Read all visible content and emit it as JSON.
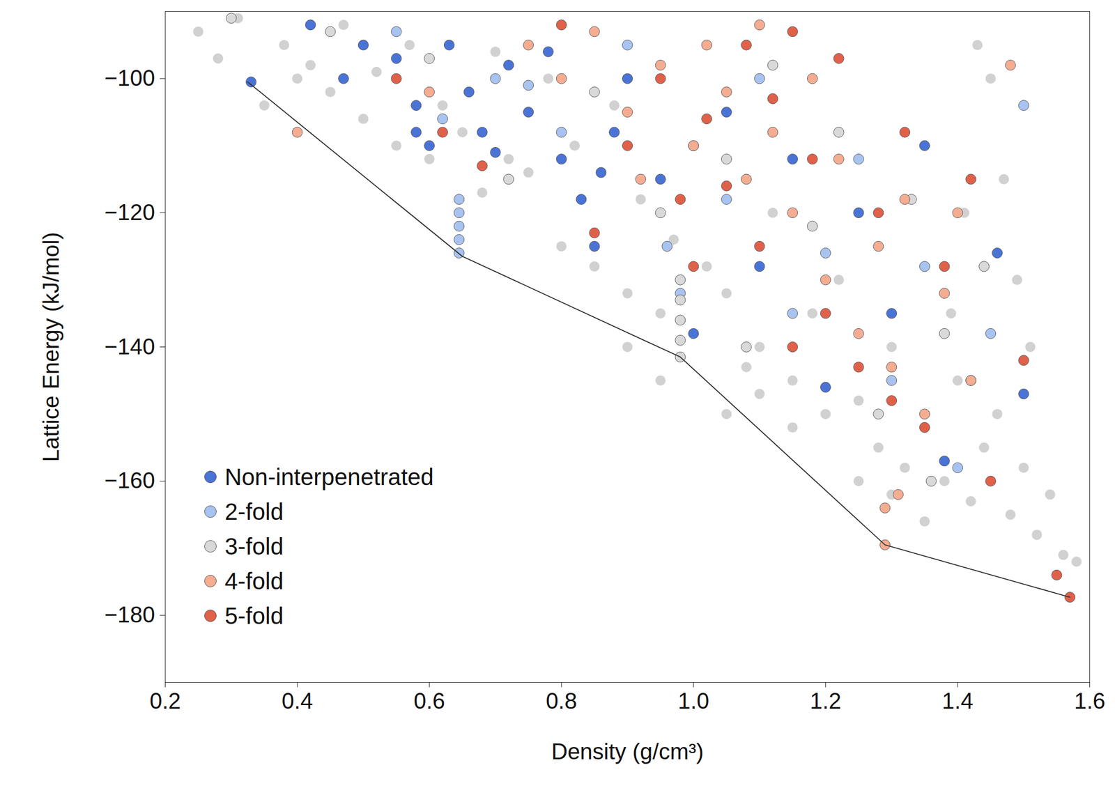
{
  "chart_data": {
    "type": "scatter",
    "x_label": "Density (g/cm³)",
    "y_label": "Lattice Energy (kJ/mol)",
    "xlim": [
      0.2,
      1.6
    ],
    "xticks": [
      0.2,
      0.4,
      0.6,
      0.8,
      {
        "value": 1,
        "label": "1.0"
      },
      1.2,
      1.4,
      1.6
    ],
    "ylim": [
      -190,
      -90
    ],
    "yticks": [
      -180,
      -160,
      -140,
      -120,
      -100
    ],
    "grid": false,
    "legend": "bottom-left",
    "series": [
      {
        "color": "#8c8c8c",
        "marker": "circle",
        "x": [
          0.25,
          0.28,
          0.31,
          0.35,
          0.38,
          0.4,
          0.42,
          0.45,
          0.47,
          0.5,
          0.52,
          0.55,
          0.57,
          0.6,
          0.62,
          0.65,
          0.68,
          0.7,
          0.72,
          0.75,
          0.78,
          0.8,
          0.82,
          0.85,
          0.88,
          0.9,
          0.92,
          0.95,
          0.97,
          1.0,
          1.02,
          1.05,
          1.08,
          1.1,
          1.12,
          1.15,
          1.18,
          1.2,
          1.22,
          1.25,
          1.28,
          1.3,
          1.32,
          1.35,
          1.38,
          1.4,
          1.42,
          1.44,
          1.46,
          1.48,
          1.5,
          1.52,
          1.54,
          1.56,
          1.58,
          1.45,
          1.47,
          1.49,
          1.51,
          1.43,
          1.41,
          1.39,
          0.9,
          0.95,
          1.05,
          1.1,
          1.15,
          1.25,
          1.3,
          1.35
        ],
        "values": [
          -93,
          -97,
          -91,
          -104,
          -95,
          -100,
          -98,
          -102,
          -92,
          -106,
          -99,
          -110,
          -95,
          -112,
          -104,
          -108,
          -117,
          -96,
          -112,
          -114,
          -100,
          -125,
          -110,
          -128,
          -104,
          -132,
          -118,
          -135,
          -124,
          -138,
          -128,
          -132,
          -143,
          -140,
          -120,
          -145,
          -135,
          -150,
          -130,
          -148,
          -155,
          -140,
          -158,
          -152,
          -160,
          -145,
          -163,
          -155,
          -150,
          -165,
          -158,
          -168,
          -162,
          -171,
          -172,
          -100,
          -115,
          -130,
          -140,
          -95,
          -120,
          -135,
          -140,
          -145,
          -150,
          -147,
          -152,
          -160,
          -162,
          -166
        ]
      },
      {
        "name": "Non-interpenetrated",
        "color": "#4a73d6",
        "marker": "circle",
        "x": [
          0.33,
          0.42,
          0.47,
          0.5,
          0.55,
          0.58,
          0.6,
          0.63,
          0.66,
          0.68,
          0.7,
          0.72,
          0.75,
          0.78,
          0.8,
          0.83,
          0.85,
          0.88,
          0.9,
          0.95,
          1.0,
          1.05,
          1.1,
          1.15,
          1.2,
          1.25,
          1.3,
          1.35,
          1.38,
          1.42,
          1.46,
          1.5,
          0.58,
          0.86
        ],
        "values": [
          -100.5,
          -92,
          -100,
          -95,
          -97,
          -104,
          -110,
          -95,
          -102,
          -108,
          -111,
          -98,
          -105,
          -96,
          -112,
          -118,
          -125,
          -108,
          -100,
          -115,
          -138,
          -105,
          -128,
          -112,
          -146,
          -120,
          -135,
          -110,
          -157,
          -145,
          -126,
          -147,
          -108,
          -114
        ]
      },
      {
        "name": "2-fold",
        "color": "#a8c3f0",
        "marker": "circle",
        "x": [
          0.645,
          0.645,
          0.645,
          0.645,
          0.645,
          0.55,
          0.62,
          0.7,
          0.8,
          0.9,
          0.96,
          0.98,
          1.05,
          1.1,
          1.15,
          1.2,
          1.25,
          1.3,
          1.35,
          1.4,
          1.45,
          1.5,
          0.75,
          1.0
        ],
        "values": [
          -118,
          -120,
          -122,
          -124,
          -126,
          -93,
          -106,
          -100,
          -108,
          -95,
          -125,
          -132,
          -118,
          -100,
          -135,
          -126,
          -112,
          -145,
          -128,
          -158,
          -138,
          -104,
          -101,
          -110
        ]
      },
      {
        "name": "3-fold",
        "color": "#d9d9d9",
        "marker": "circle",
        "x": [
          0.98,
          0.98,
          0.98,
          0.98,
          0.98,
          0.3,
          0.45,
          0.6,
          0.72,
          0.85,
          0.95,
          1.08,
          1.12,
          1.18,
          1.22,
          1.28,
          1.33,
          1.38,
          1.44,
          1.36,
          1.05
        ],
        "values": [
          -130,
          -133,
          -136,
          -139,
          -141.5,
          -91,
          -93,
          -97,
          -115,
          -102,
          -120,
          -140,
          -98,
          -122,
          -108,
          -150,
          -118,
          -138,
          -128,
          -160,
          -112
        ]
      },
      {
        "name": "4-fold",
        "color": "#f5ad92",
        "marker": "circle",
        "x": [
          0.4,
          0.6,
          0.75,
          0.8,
          0.85,
          0.9,
          0.95,
          1.0,
          1.02,
          1.05,
          1.08,
          1.1,
          1.12,
          1.15,
          1.18,
          1.2,
          1.22,
          1.25,
          1.28,
          1.3,
          1.32,
          1.35,
          1.38,
          1.4,
          1.42,
          1.29,
          1.31,
          1.29,
          1.48,
          0.92
        ],
        "values": [
          -108,
          -102,
          -95,
          -100,
          -93,
          -105,
          -98,
          -110,
          -95,
          -102,
          -115,
          -92,
          -108,
          -120,
          -100,
          -130,
          -112,
          -138,
          -125,
          -143,
          -118,
          -150,
          -132,
          -120,
          -145,
          -164,
          -162,
          -169.5,
          -98,
          -115
        ]
      },
      {
        "name": "5-fold",
        "color": "#e0614a",
        "marker": "circle",
        "x": [
          0.55,
          0.62,
          0.68,
          0.8,
          0.85,
          0.9,
          0.95,
          1.0,
          1.02,
          1.05,
          1.08,
          1.1,
          1.12,
          1.15,
          1.18,
          1.2,
          1.22,
          1.25,
          1.28,
          1.3,
          1.32,
          1.35,
          1.38,
          1.42,
          1.45,
          1.5,
          1.55,
          1.57,
          1.15,
          0.98
        ],
        "values": [
          -100,
          -108,
          -113,
          -92,
          -123,
          -110,
          -100,
          -128,
          -106,
          -116,
          -95,
          -125,
          -103,
          -140,
          -112,
          -135,
          -97,
          -143,
          -120,
          -148,
          -108,
          -152,
          -128,
          -115,
          -160,
          -142,
          -174,
          -177.3,
          -93,
          -118
        ]
      },
      {
        "type": "line",
        "color": "#333333",
        "line_style": "solid",
        "x": [
          0.325,
          0.65,
          0.98,
          1.29,
          1.57
        ],
        "values": [
          -100.5,
          -126.5,
          -141.5,
          -169.5,
          -177.3
        ]
      }
    ]
  }
}
